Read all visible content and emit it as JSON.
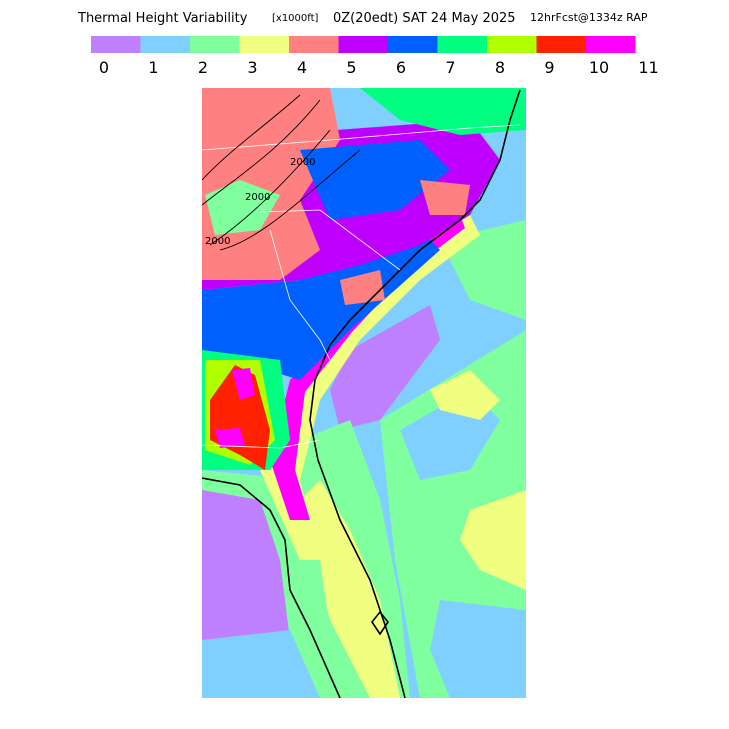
{
  "header": {
    "title": "Thermal Height Variability",
    "units": "[x1000ft]",
    "time": "0Z(20edt) SAT 24 May 2025",
    "forecast": "12hrFcst@1334z RAP"
  },
  "legend": {
    "colors": [
      "#bf80ff",
      "#80d0ff",
      "#80ff9f",
      "#f0ff80",
      "#ff8080",
      "#c000ff",
      "#0060ff",
      "#00ff80",
      "#b0ff00",
      "#ff2000",
      "#ff00ff"
    ],
    "labels": [
      0,
      1,
      2,
      3,
      4,
      5,
      6,
      7,
      8,
      9,
      10,
      11
    ]
  },
  "map": {
    "contour_labels": [
      "2000",
      "2000",
      "2000"
    ]
  }
}
